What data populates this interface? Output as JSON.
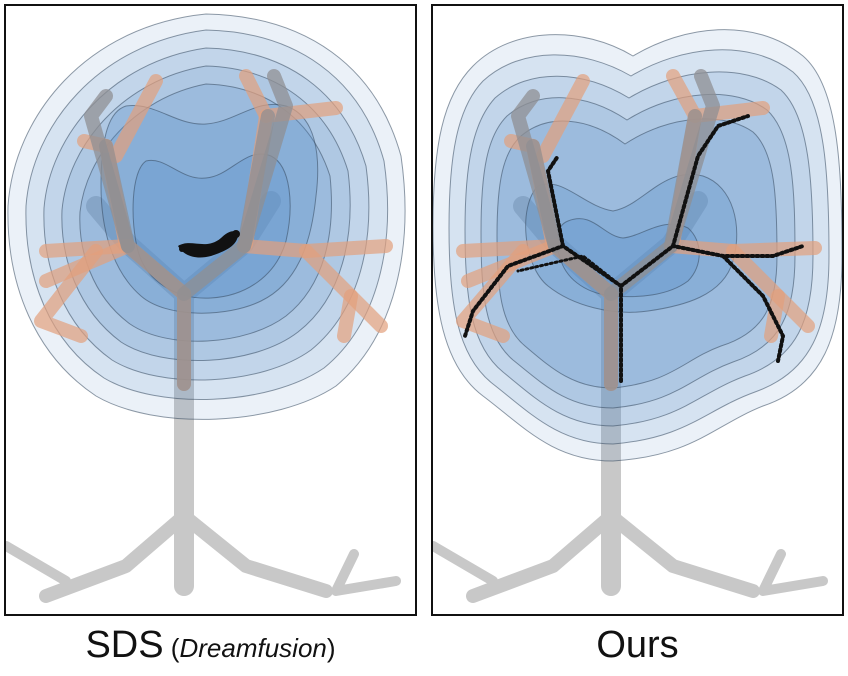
{
  "panels": [
    {
      "id": "left",
      "caption_main": "SDS",
      "caption_paren_open": " (",
      "caption_method": "Dreamfusion",
      "caption_paren_close": ")"
    },
    {
      "id": "right",
      "caption_main": "Ours"
    }
  ],
  "colors": {
    "contour_fill": "#5b8fc9",
    "contour_line": "#33485e",
    "skeleton": "#c4c4c4",
    "branch_orange": "#e5a07a",
    "samples": "#111111",
    "frame": "#111111"
  }
}
